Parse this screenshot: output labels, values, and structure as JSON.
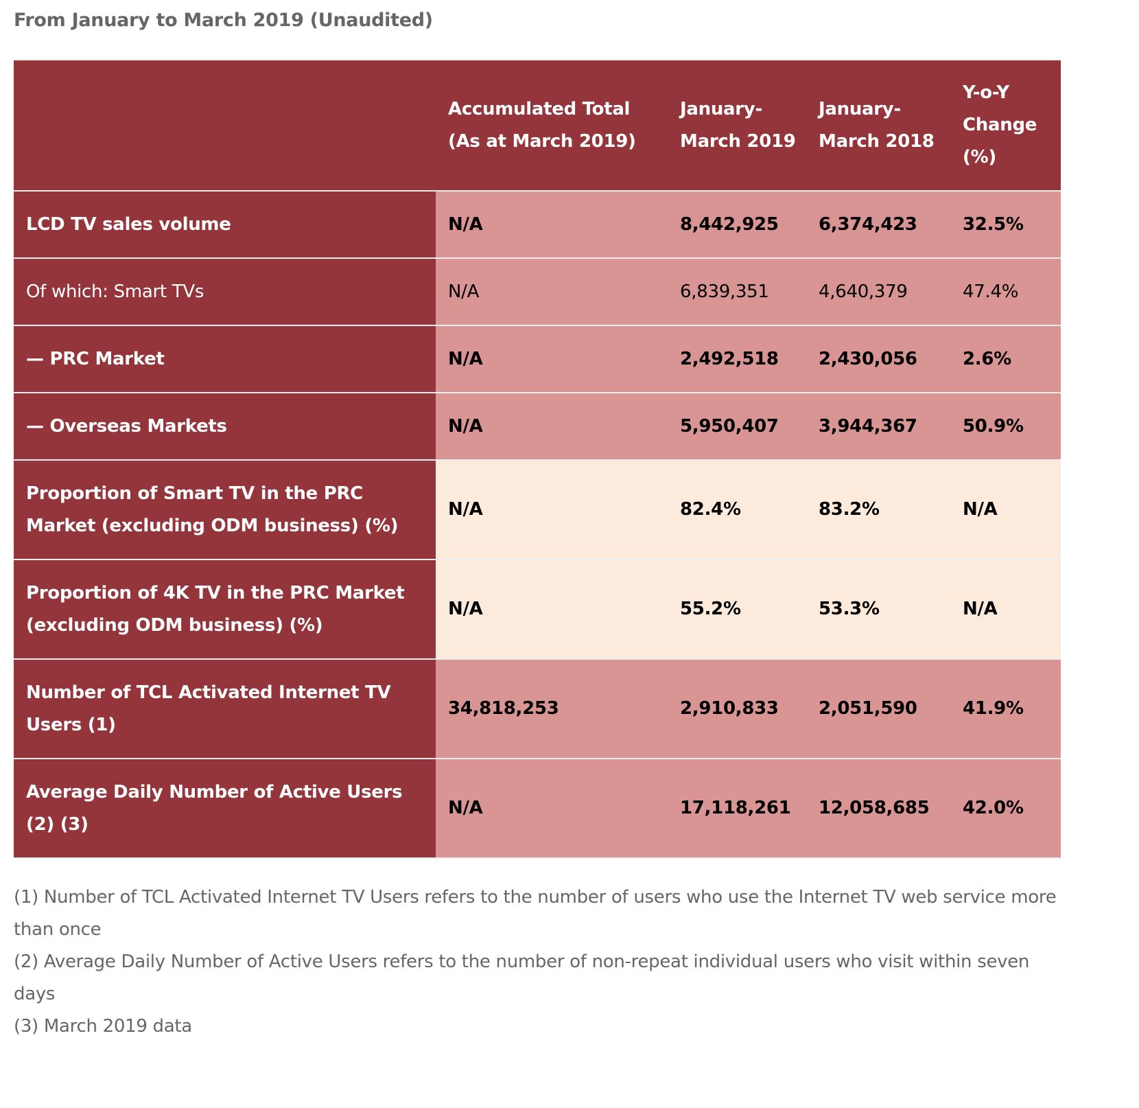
{
  "title": "From January to March 2019 (Unaudited)",
  "colors": {
    "header_bg": "#93353a",
    "value_bg": "#d99594",
    "proportion_bg": "#fceadc"
  },
  "table": {
    "headers": [
      "",
      "Accumulated Total (As at March 2019)",
      "January-March 2019",
      "January-March 2018",
      "Y-o-Y Change (%)"
    ],
    "rows": [
      {
        "label": "LCD TV sales volume",
        "bold": true,
        "values": [
          "N/A",
          "8,442,925",
          "6,374,423",
          "32.5%"
        ]
      },
      {
        "label": "Of which: Smart TVs",
        "bold": false,
        "values": [
          "N/A",
          "6,839,351",
          "4,640,379",
          "47.4%"
        ]
      },
      {
        "label": "— PRC Market",
        "bold": true,
        "values": [
          "N/A",
          "2,492,518",
          "2,430,056",
          "2.6%"
        ]
      },
      {
        "label": "— Overseas Markets",
        "bold": true,
        "values": [
          "N/A",
          "5,950,407",
          "3,944,367",
          "50.9%"
        ]
      },
      {
        "label": "Proportion of Smart TV in the PRC Market (excluding ODM business) (%)",
        "bold": true,
        "values": [
          "N/A",
          "82.4%",
          "83.2%",
          "N/A"
        ]
      },
      {
        "label": "Proportion of 4K TV in the PRC Market (excluding ODM business) (%)",
        "bold": true,
        "values": [
          "N/A",
          "55.2%",
          "53.3%",
          "N/A"
        ]
      },
      {
        "label": "Number of TCL Activated Internet TV Users (1)",
        "bold": true,
        "values": [
          "34,818,253",
          "2,910,833",
          "2,051,590",
          "41.9%"
        ]
      },
      {
        "label": "Average Daily Number of Active Users (2) (3)",
        "bold": true,
        "values": [
          "N/A",
          "17,118,261",
          "12,058,685",
          "42.0%"
        ]
      }
    ]
  },
  "notes": [
    "(1) Number of TCL Activated Internet TV Users refers to the number of users who use the Internet TV web service more than once",
    "(2) Average Daily Number of Active Users refers to the number of non-repeat individual users who visit within seven days",
    "(3)  March 2019 data"
  ]
}
